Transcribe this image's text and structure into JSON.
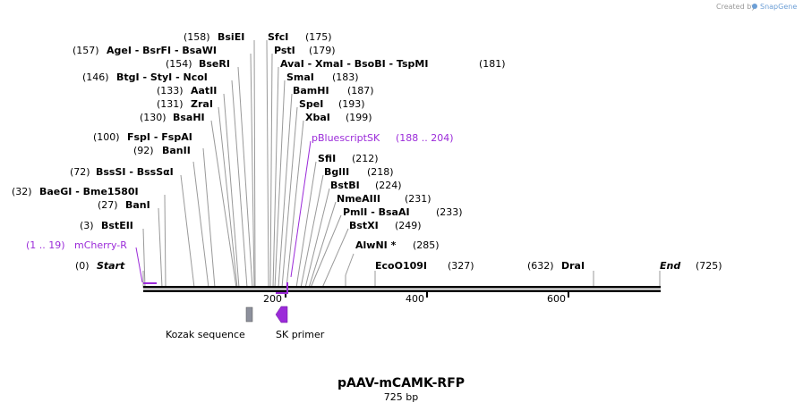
{
  "credit": {
    "created_by": "Created by",
    "brand": "SnapGene"
  },
  "plasmid": {
    "name": "pAAV-mCAMK-RFP",
    "length": "725 bp"
  },
  "axis": {
    "ticks": [
      "200",
      "400",
      "600"
    ]
  },
  "labels": [
    {
      "name": "BsiEI",
      "pos": "158"
    },
    {
      "name": "SfcI",
      "pos": "175"
    },
    {
      "name": "AgeI - BsrFI - BsaWI",
      "pos": "157"
    },
    {
      "name": "PstI",
      "pos": "179"
    },
    {
      "name": "BseRI",
      "pos": "154"
    },
    {
      "name": "AvaI - XmaI - BsoBI - TspMI",
      "pos": "181"
    },
    {
      "name": "BtgI - StyI - NcoI",
      "pos": "146"
    },
    {
      "name": "SmaI",
      "pos": "183"
    },
    {
      "name": "AatII",
      "pos": "133"
    },
    {
      "name": "BamHI",
      "pos": "187"
    },
    {
      "name": "ZraI",
      "pos": "131"
    },
    {
      "name": "SpeI",
      "pos": "193"
    },
    {
      "name": "BsaHI",
      "pos": "130"
    },
    {
      "name": "XbaI",
      "pos": "199"
    },
    {
      "name": "FspI - FspAI",
      "pos": "100"
    },
    {
      "name": "BanII",
      "pos": "92"
    },
    {
      "name": "SfiI",
      "pos": "212"
    },
    {
      "name": "BssSI - BssSαI",
      "pos": "72"
    },
    {
      "name": "BglII",
      "pos": "218"
    },
    {
      "name": "BstBI",
      "pos": "224"
    },
    {
      "name": "BaeGI - Bme1580I",
      "pos": "32"
    },
    {
      "name": "NmeAIII",
      "pos": "231"
    },
    {
      "name": "BanI",
      "pos": "27"
    },
    {
      "name": "PmlI - BsaAI",
      "pos": "233"
    },
    {
      "name": "BstEII",
      "pos": "3"
    },
    {
      "name": "BstXI",
      "pos": "249"
    },
    {
      "name": "AlwNI *",
      "pos": "285"
    },
    {
      "name": "EcoO109I",
      "pos": "327"
    },
    {
      "name": "DraI",
      "pos": "632"
    }
  ],
  "start": {
    "name": "Start",
    "pos": "0"
  },
  "end": {
    "name": "End",
    "pos": "725"
  },
  "primer_bind": {
    "name": "pBluescriptSK",
    "range": "188 .. 204"
  },
  "feature_mcherry": {
    "name": "mCherry-R",
    "range": "1 .. 19"
  },
  "features": [
    {
      "name": "Kozak sequence"
    },
    {
      "name": "SK primer"
    }
  ],
  "colors": {
    "feature_purple": "#9b2bd9",
    "kozak_gray": "#8d909c",
    "line_gray": "#999999"
  }
}
